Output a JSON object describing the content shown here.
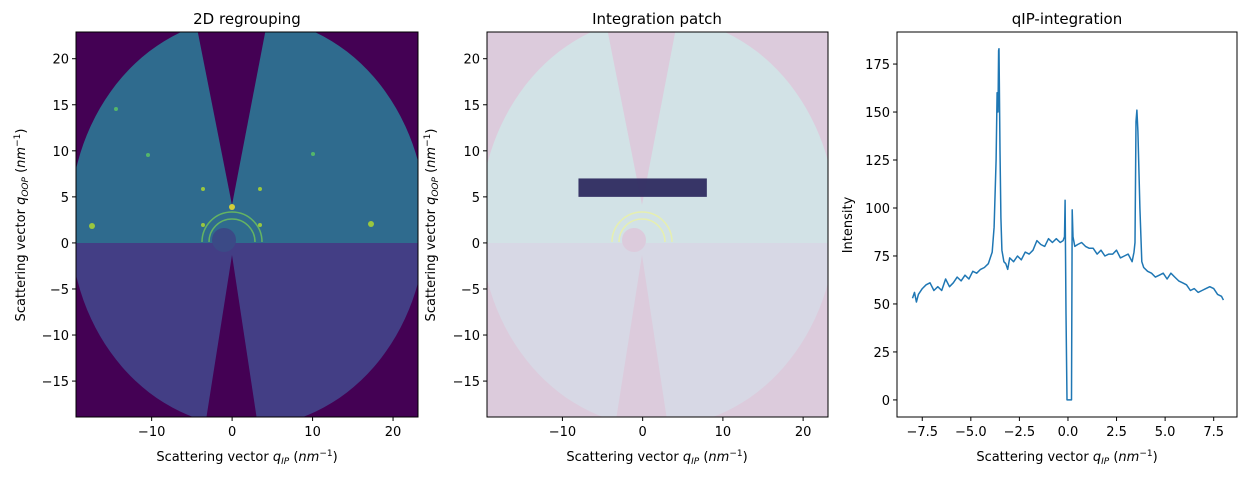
{
  "chart_data": [
    {
      "type": "heatmap",
      "title": "2D regrouping",
      "xlabel": "Scattering vector q_IP (nm^-1)",
      "ylabel": "Scattering vector q_OOP (nm^-1)",
      "xlim": [
        -19.4,
        23.1
      ],
      "ylim": [
        -18.9,
        22.9
      ],
      "xticks": [
        -10,
        0,
        10,
        20
      ],
      "yticks": [
        -15,
        -10,
        -5,
        0,
        5,
        10,
        15,
        20
      ],
      "colormap": "viridis",
      "colors": {
        "background": "#440154",
        "upper": "#2f6b8e",
        "lower": "#433e85",
        "beamstop": "#3b4a86"
      }
    },
    {
      "type": "heatmap",
      "title": "Integration patch",
      "xlabel": "Scattering vector q_IP (nm^-1)",
      "ylabel": "Scattering vector q_OOP (nm^-1)",
      "xlim": [
        -19.4,
        23.1
      ],
      "ylim": [
        -18.9,
        22.9
      ],
      "xticks": [
        -10,
        0,
        10,
        20
      ],
      "yticks": [
        -15,
        -10,
        -5,
        0,
        5,
        10,
        15,
        20
      ],
      "patch": {
        "x": [
          -8,
          8
        ],
        "y": [
          5,
          7
        ],
        "color": "#2e2b60"
      },
      "colors": {
        "background": "#dccbdc",
        "upper": "#d2e2e6",
        "lower": "#d7d8e5"
      }
    },
    {
      "type": "line",
      "title": "qIP-integration",
      "xlabel": "Scattering vector q_IP (nm^-1)",
      "ylabel": "Intensity",
      "xlim": [
        -8.8,
        8.7
      ],
      "ylim": [
        -8.9,
        191.7
      ],
      "xticks": [
        -7.5,
        -5.0,
        -2.5,
        0.0,
        2.5,
        5.0,
        7.5
      ],
      "xtick_labels": [
        "−7.5",
        "−5.0",
        "−2.5",
        "0.0",
        "2.5",
        "5.0",
        "7.5"
      ],
      "yticks": [
        0,
        25,
        50,
        75,
        100,
        125,
        150,
        175
      ],
      "color": "#1f77b4",
      "x": [
        -8.0,
        -7.9,
        -7.8,
        -7.7,
        -7.5,
        -7.3,
        -7.1,
        -6.9,
        -6.7,
        -6.5,
        -6.3,
        -6.1,
        -5.9,
        -5.7,
        -5.5,
        -5.3,
        -5.1,
        -4.9,
        -4.7,
        -4.5,
        -4.3,
        -4.1,
        -3.9,
        -3.8,
        -3.7,
        -3.65,
        -3.6,
        -3.57,
        -3.55,
        -3.5,
        -3.45,
        -3.4,
        -3.3,
        -3.2,
        -3.1,
        -3.0,
        -2.8,
        -2.6,
        -2.4,
        -2.2,
        -2.0,
        -1.8,
        -1.6,
        -1.4,
        -1.2,
        -1.0,
        -0.8,
        -0.6,
        -0.4,
        -0.25,
        -0.18,
        -0.15,
        -0.1,
        -0.05,
        0.0,
        0.1,
        0.18,
        0.22,
        0.26,
        0.35,
        0.5,
        0.7,
        0.9,
        1.1,
        1.3,
        1.5,
        1.7,
        1.9,
        2.1,
        2.3,
        2.5,
        2.7,
        2.9,
        3.1,
        3.3,
        3.4,
        3.45,
        3.5,
        3.55,
        3.6,
        3.7,
        3.8,
        3.9,
        4.1,
        4.3,
        4.5,
        4.7,
        4.9,
        5.1,
        5.3,
        5.5,
        5.7,
        5.9,
        6.1,
        6.3,
        6.5,
        6.7,
        6.9,
        7.1,
        7.3,
        7.5,
        7.7,
        7.9,
        8.0
      ],
      "y": [
        53,
        56,
        51,
        55,
        58,
        60,
        61,
        57,
        59,
        57,
        63,
        59,
        61,
        64,
        62,
        65,
        63,
        67,
        66,
        68,
        69,
        71,
        77,
        90,
        125,
        160,
        150,
        182,
        183,
        130,
        95,
        78,
        72,
        71,
        68,
        74,
        72,
        75,
        73,
        77,
        76,
        78,
        83,
        81,
        80,
        84,
        82,
        84,
        82,
        83,
        85,
        104,
        45,
        0,
        0,
        0,
        0,
        99,
        85,
        80,
        81,
        82,
        80,
        79,
        79,
        76,
        78,
        75,
        76,
        76,
        78,
        74,
        75,
        76,
        72,
        77,
        82,
        145,
        151,
        140,
        100,
        72,
        69,
        67,
        66,
        64,
        65,
        66,
        63,
        66,
        64,
        62,
        61,
        60,
        57,
        58,
        56,
        57,
        58,
        59,
        58,
        55,
        54,
        52
      ]
    }
  ]
}
